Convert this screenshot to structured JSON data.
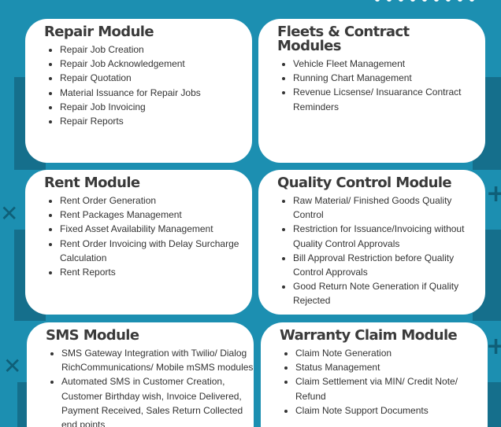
{
  "modules": [
    {
      "title": "Repair Module",
      "items": [
        "Repair Job Creation",
        "Repair Job Acknowledgement",
        "Repair Quotation",
        "Material Issuance for Repair Jobs",
        "Repair Job Invoicing",
        "Repair Reports"
      ]
    },
    {
      "title": "Fleets & Contract Modules",
      "items": [
        "Vehicle Fleet Management",
        "Running Chart Management",
        "Revenue Licsense/ Insuarance Contract Reminders"
      ]
    },
    {
      "title": "Rent Module",
      "items": [
        "Rent Order Generation",
        "Rent Packages Management",
        "Fixed Asset Availability Management",
        "Rent Order Invoicing with Delay Surcharge Calculation",
        "Rent Reports"
      ]
    },
    {
      "title": "Quality Control Module",
      "items": [
        "Raw Material/ Finished Goods Quality Control",
        "Restriction for Issuance/Invoicing without Quality Control Approvals",
        "Bill Approval Restriction before Quality Control Approvals",
        "Good Return Note Generation if Quality Rejected"
      ]
    },
    {
      "title": "SMS Module",
      "items": [
        "SMS Gateway Integration with Twilio/ Dialog RichCommunications/ Mobile mSMS modules",
        "Automated SMS in Customer Creation, Customer Birthday wish, Invoice Delivered, Payment Received, Sales Return Collected end points"
      ]
    },
    {
      "title": "Warranty Claim Module",
      "items": [
        "Claim Note Generation",
        "Status Management",
        "Claim Settlement via MIN/ Credit Note/ Refund",
        "Claim Note Support Documents"
      ]
    }
  ],
  "colors": {
    "background": "#1c8fb1",
    "card": "#ffffff",
    "heading": "#3a3a3a",
    "text": "#333333",
    "accent_dark": "#156f8c"
  }
}
